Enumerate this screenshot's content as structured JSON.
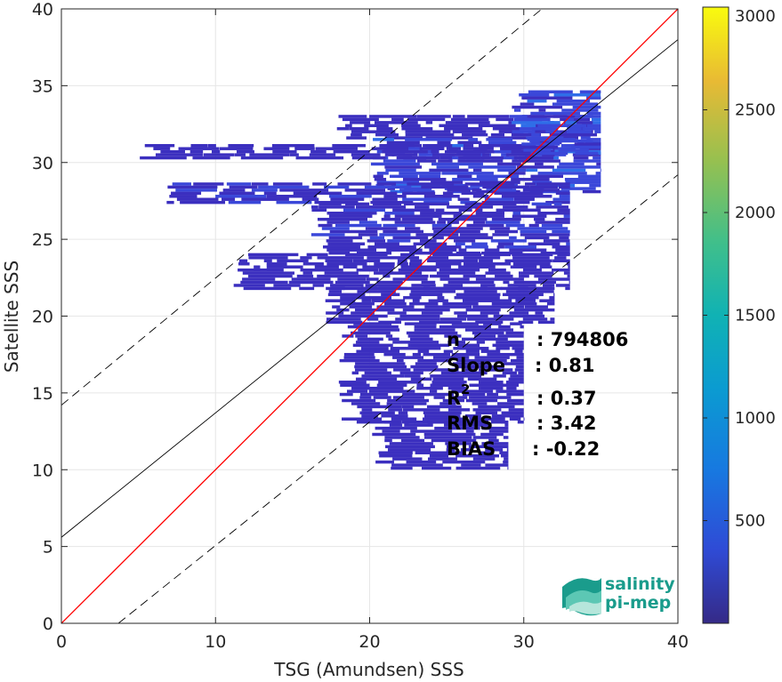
{
  "chart_data": {
    "type": "heatmap",
    "xlabel": "TSG (Amundsen) SSS",
    "ylabel": "Satellite SSS",
    "xlim": [
      0,
      40
    ],
    "ylim": [
      0,
      40
    ],
    "x_ticks": [
      "0",
      "10",
      "20",
      "30",
      "40"
    ],
    "y_ticks": [
      "0",
      "5",
      "10",
      "15",
      "20",
      "25",
      "30",
      "35",
      "40"
    ],
    "grid": true,
    "colormap": "parula",
    "colorbar": {
      "range": [
        0,
        3000
      ],
      "ticks": [
        "500",
        "1000",
        "1500",
        "2000",
        "2500",
        "3000"
      ]
    },
    "lines": [
      {
        "name": "one-to-one",
        "style": "solid",
        "color": "#ff0000",
        "points": [
          [
            0,
            0
          ],
          [
            40,
            40
          ]
        ]
      },
      {
        "name": "regression",
        "style": "solid",
        "color": "#000000",
        "points": [
          [
            0,
            5.6
          ],
          [
            40,
            38
          ]
        ]
      },
      {
        "name": "upper-bound",
        "style": "dashed",
        "color": "#000000",
        "points": [
          [
            0,
            14.2
          ],
          [
            40,
            47.3
          ]
        ]
      },
      {
        "name": "lower-bound",
        "style": "dashed",
        "color": "#000000",
        "points": [
          [
            3.7,
            0
          ],
          [
            40,
            29.2
          ]
        ]
      }
    ],
    "density_regions": [
      {
        "x_range": [
          17.5,
          34.5
        ],
        "y_range": [
          31.5,
          33.0
        ],
        "count": 60
      },
      {
        "x_range": [
          20,
          35
        ],
        "y_range": [
          28,
          31.5
        ],
        "count": 200
      },
      {
        "x_range": [
          6,
          33
        ],
        "y_range": [
          27.3,
          28.6
        ],
        "count": 120
      },
      {
        "x_range": [
          5,
          32
        ],
        "y_range": [
          30.2,
          31.0
        ],
        "count": 50
      },
      {
        "x_range": [
          16,
          33
        ],
        "y_range": [
          24,
          27.3
        ],
        "count": 120
      },
      {
        "x_range": [
          11,
          33
        ],
        "y_range": [
          21.7,
          24
        ],
        "count": 70
      },
      {
        "x_range": [
          17,
          32
        ],
        "y_range": [
          19.5,
          21.7
        ],
        "count": 40
      },
      {
        "x_range": [
          18,
          30
        ],
        "y_range": [
          13,
          19.5
        ],
        "count": 40
      },
      {
        "x_range": [
          20,
          29
        ],
        "y_range": [
          10,
          13
        ],
        "count": 20
      },
      {
        "x_range": [
          29,
          35
        ],
        "y_range": [
          30.5,
          34.6
        ],
        "count": 220
      }
    ],
    "stats": {
      "labels": [
        "n",
        "Slope",
        "R",
        "RMS",
        "BIAS"
      ],
      "values": [
        ": 794806",
        ": 0.81",
        ": 0.37",
        ": 3.42",
        ": -0.22"
      ],
      "r_superscript": "2"
    }
  },
  "logo": {
    "line1": "salinity",
    "line2": "pi-mep"
  }
}
